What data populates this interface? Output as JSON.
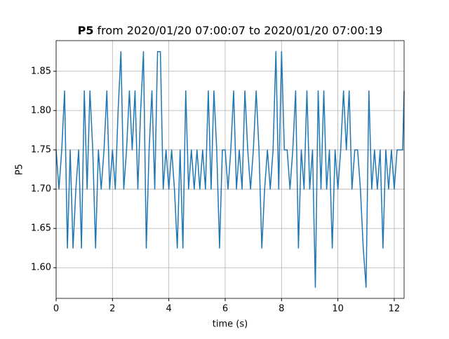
{
  "chart_data": {
    "type": "line",
    "title_name": "P5",
    "title_text": "from 2020/01/20 07:00:07 to 2020/01/20 07:00:19",
    "xlabel": "time (s)",
    "ylabel": "P5",
    "x": [
      0,
      0.1,
      0.2,
      0.3,
      0.4,
      0.5,
      0.6,
      0.7,
      0.8,
      0.9,
      1,
      1.1,
      1.2,
      1.3,
      1.4,
      1.5,
      1.6,
      1.7,
      1.8,
      1.9,
      2,
      2.1,
      2.2,
      2.3,
      2.4,
      2.5,
      2.6,
      2.7,
      2.8,
      2.9,
      3,
      3.1,
      3.2,
      3.3,
      3.4,
      3.5,
      3.6,
      3.7,
      3.8,
      3.9,
      4,
      4.1,
      4.2,
      4.3,
      4.4,
      4.5,
      4.6,
      4.7,
      4.8,
      4.9,
      5,
      5.1,
      5.2,
      5.3,
      5.4,
      5.5,
      5.6,
      5.7,
      5.8,
      5.9,
      6,
      6.1,
      6.2,
      6.3,
      6.4,
      6.5,
      6.6,
      6.7,
      6.8,
      6.9,
      7,
      7.1,
      7.2,
      7.3,
      7.4,
      7.5,
      7.6,
      7.7,
      7.8,
      7.9,
      8,
      8.1,
      8.2,
      8.3,
      8.4,
      8.5,
      8.6,
      8.7,
      8.8,
      8.9,
      9,
      9.1,
      9.2,
      9.3,
      9.4,
      9.5,
      9.6,
      9.7,
      9.8,
      9.9,
      10,
      10.1,
      10.2,
      10.3,
      10.4,
      10.5,
      10.6,
      10.7,
      10.8,
      10.9,
      11,
      11.1,
      11.2,
      11.3,
      11.4,
      11.5,
      11.6,
      11.7,
      11.8,
      11.9,
      12,
      12.1,
      12.2,
      12.3,
      12.35
    ],
    "series": [
      {
        "name": "P5",
        "color": "#1f77b4",
        "values": [
          1.75,
          1.7,
          1.75,
          1.825,
          1.625,
          1.75,
          1.625,
          1.7,
          1.75,
          1.625,
          1.825,
          1.7,
          1.825,
          1.75,
          1.625,
          1.75,
          1.7,
          1.75,
          1.825,
          1.7,
          1.75,
          1.7,
          1.8,
          1.875,
          1.7,
          1.75,
          1.825,
          1.75,
          1.825,
          1.7,
          1.8,
          1.875,
          1.625,
          1.75,
          1.825,
          1.7,
          1.875,
          1.875,
          1.7,
          1.75,
          1.7,
          1.75,
          1.7,
          1.625,
          1.75,
          1.625,
          1.825,
          1.7,
          1.75,
          1.7,
          1.75,
          1.7,
          1.75,
          1.7,
          1.825,
          1.7,
          1.825,
          1.75,
          1.625,
          1.75,
          1.75,
          1.7,
          1.75,
          1.825,
          1.7,
          1.75,
          1.7,
          1.825,
          1.75,
          1.7,
          1.75,
          1.825,
          1.75,
          1.625,
          1.7,
          1.75,
          1.7,
          1.75,
          1.875,
          1.7,
          1.875,
          1.75,
          1.75,
          1.7,
          1.75,
          1.825,
          1.625,
          1.75,
          1.7,
          1.825,
          1.7,
          1.75,
          1.575,
          1.825,
          1.7,
          1.825,
          1.7,
          1.75,
          1.625,
          1.75,
          1.7,
          1.75,
          1.825,
          1.75,
          1.825,
          1.7,
          1.75,
          1.75,
          1.7,
          1.625,
          1.575,
          1.825,
          1.7,
          1.75,
          1.7,
          1.75,
          1.625,
          1.75,
          1.7,
          1.75,
          1.7,
          1.75,
          1.75,
          1.75,
          1.825
        ]
      }
    ],
    "xlim": [
      0,
      12.35
    ],
    "ylim": [
      1.561,
      1.889
    ],
    "xticks": [
      0,
      2,
      4,
      6,
      8,
      10,
      12
    ],
    "yticks": [
      {
        "value": 1.6,
        "label": "1.60"
      },
      {
        "value": 1.65,
        "label": "1.65"
      },
      {
        "value": 1.7,
        "label": "1.70"
      },
      {
        "value": 1.75,
        "label": "1.75"
      },
      {
        "value": 1.8,
        "label": "1.80"
      },
      {
        "value": 1.85,
        "label": "1.85"
      }
    ],
    "grid": true
  }
}
